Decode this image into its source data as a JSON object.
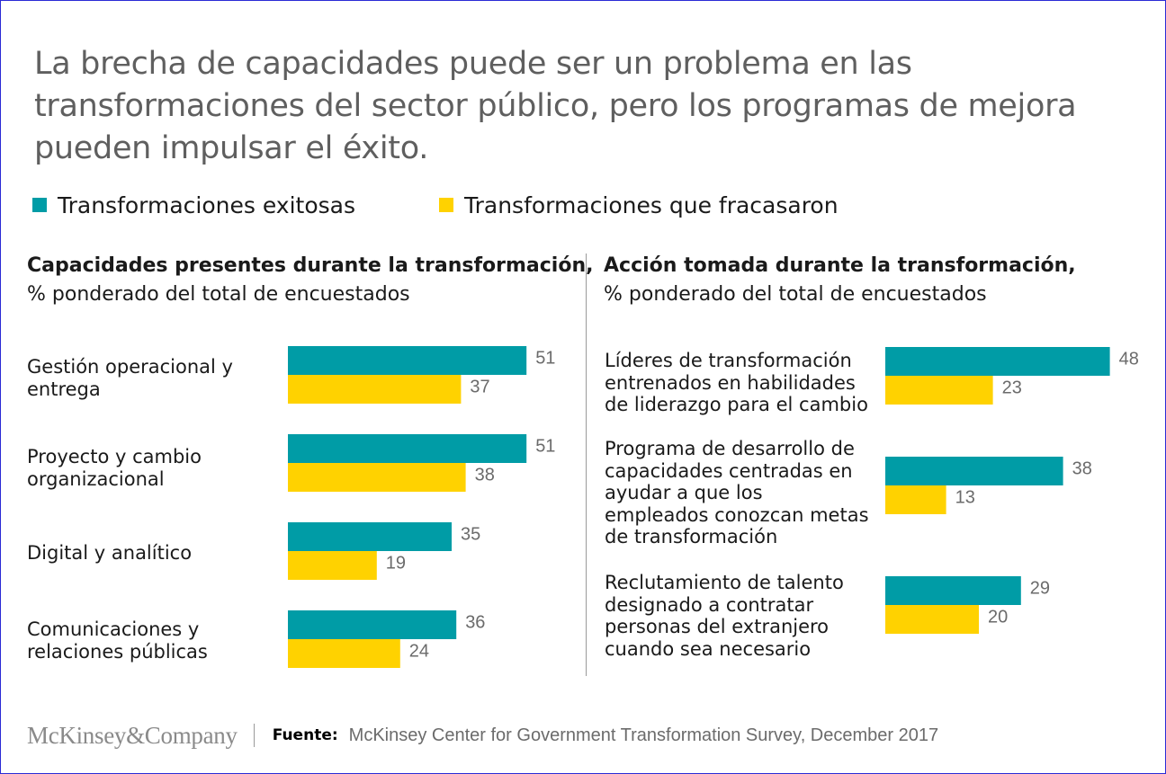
{
  "title_lines": [
    "La brecha de capacidades puede ser un problema en las",
    "transformaciones del sector público, pero los programas de mejora",
    "pueden impulsar el éxito."
  ],
  "colors": {
    "series_success": "#009ca6",
    "series_failed": "#ffd200",
    "frame": "#2b2bd6"
  },
  "chart_data": [
    {
      "type": "bar",
      "orientation": "horizontal",
      "title": "Capacidades presentes durante la transformación,",
      "subtitle": "% ponderado del total de encuestados",
      "categories": [
        "Gestión operacional y entrega",
        "Proyecto y cambio organizacional",
        "Digital y analítico",
        "Comunicaciones y relaciones públicas"
      ],
      "category_lines": [
        [
          "Gestión operacional y",
          "entrega"
        ],
        [
          "Proyecto y cambio",
          "organizacional"
        ],
        [
          "Digital y analítico"
        ],
        [
          "Comunicaciones y",
          "relaciones públicas"
        ]
      ],
      "series": [
        {
          "name": "Transformaciones exitosas",
          "values": [
            51,
            51,
            35,
            36
          ]
        },
        {
          "name": "Transformaciones que fracasaron",
          "values": [
            37,
            38,
            19,
            24
          ]
        }
      ],
      "legend": "top-left",
      "grid": false
    },
    {
      "type": "bar",
      "orientation": "horizontal",
      "title": "Acción tomada durante la transformación,",
      "subtitle": "% ponderado del total de encuestados",
      "categories": [
        "Líderes de transformación entrenados en habilidades de liderazgo para el cambio",
        "Programa de desarrollo de capacidades centradas en ayudar a que los empleados conozcan metas de transformación",
        "Reclutamiento  de talento designado a contratar personas del extranjero cuando sea necesario"
      ],
      "category_lines": [
        [
          "Líderes de transformación",
          "entrenados en habilidades",
          "de liderazgo para el cambio"
        ],
        [
          "Programa de desarrollo de",
          "capacidades centradas en",
          "ayudar a que los",
          "empleados conozcan metas",
          "de transformación"
        ],
        [
          "Reclutamiento  de talento",
          "designado a contratar",
          "personas del extranjero",
          "cuando sea necesario"
        ]
      ],
      "series": [
        {
          "name": "Transformaciones exitosas",
          "values": [
            48,
            38,
            29
          ]
        },
        {
          "name": "Transformaciones que fracasaron",
          "values": [
            23,
            13,
            20
          ]
        }
      ],
      "legend": "top-left",
      "grid": false
    }
  ],
  "footer": {
    "logo": "McKinsey&Company",
    "source_label": "Fuente:",
    "source_text": "McKinsey Center for Government Transformation Survey, December 2017"
  }
}
